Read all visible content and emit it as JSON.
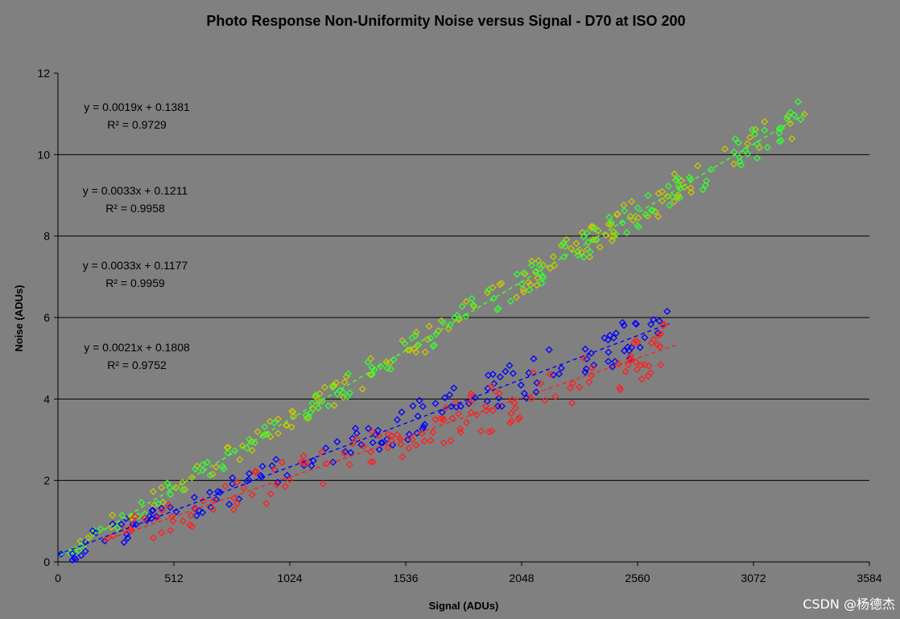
{
  "watermark": "CSDN @杨德杰",
  "chart_data": {
    "type": "scatter",
    "title": "Photo Response Non-Uniformity Noise versus Signal - D70 at ISO 200",
    "xlabel": "Signal (ADUs)",
    "ylabel": "Noise (ADUs)",
    "xlim": [
      0,
      3584
    ],
    "ylim": [
      0,
      12
    ],
    "xticks": [
      "0",
      "512",
      "1024",
      "1536",
      "2048",
      "2560",
      "3072",
      "3584"
    ],
    "yticks": [
      "0",
      "2",
      "4",
      "6",
      "8",
      "10",
      "12"
    ],
    "grid": "horizontal",
    "marker": "open-diamond",
    "series": [
      {
        "color": "#c8c800",
        "trend": {
          "slope": 0.0033,
          "intercept": 0.1211,
          "x_end": 3310
        },
        "equation": "y = 0.0033x + 0.1211",
        "r2": "R² = 0.9958",
        "x_range": [
          10,
          3310
        ],
        "noise": 0.22
      },
      {
        "color": "#33ff33",
        "trend": {
          "slope": 0.0033,
          "intercept": 0.1177,
          "x_end": 3300
        },
        "equation": "y = 0.0033x + 0.1177",
        "r2": "R² = 0.9959",
        "x_range": [
          10,
          3300
        ],
        "noise": 0.2
      },
      {
        "color": "#0000ff",
        "trend": {
          "slope": 0.0021,
          "intercept": 0.1808,
          "x_end": 2700
        },
        "equation": "y = 0.0021x + 0.1808",
        "r2": "R² = 0.9752",
        "x_range": [
          0,
          2700
        ],
        "noise": 0.3
      },
      {
        "color": "#ff2020",
        "trend": {
          "slope": 0.0019,
          "intercept": 0.1381,
          "x_end": 2740
        },
        "equation": "y = 0.0019x + 0.1381",
        "r2": "R² = 0.9729",
        "x_range": [
          200,
          2740
        ],
        "noise": 0.35
      }
    ],
    "annotations": [
      {
        "equation": "y = 0.0019x + 0.1381",
        "r2": "R² = 0.9729"
      },
      {
        "equation": "y = 0.0033x + 0.1211",
        "r2": "R² = 0.9958"
      },
      {
        "equation": "y = 0.0033x + 0.1177",
        "r2": "R² = 0.9959"
      },
      {
        "equation": "y = 0.0021x + 0.1808",
        "r2": "R² = 0.9752"
      }
    ]
  }
}
